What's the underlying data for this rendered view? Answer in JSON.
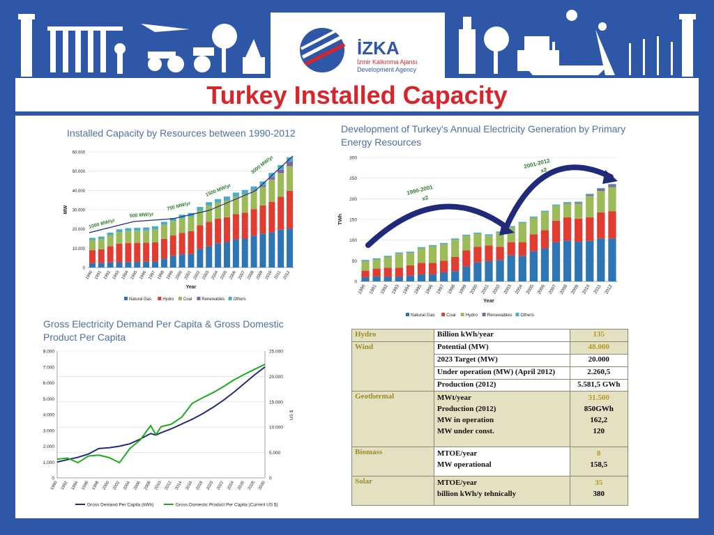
{
  "page": {
    "title": "Turkey Installed Capacity"
  },
  "logo": {
    "name": "İZKA",
    "line1": "İzmir Kalkınma Ajansı",
    "line2": "Development Agency"
  },
  "colors": {
    "frame": "#2f57a8",
    "title": "#d9242b",
    "chart_title": "#4c6fa5",
    "gas": "#2e75b6",
    "hydro": "#e03c31",
    "coal": "#9bbb59",
    "renew": "#8064a2",
    "others": "#4bacc6",
    "demand": "#1f2a7a",
    "gdp": "#1aab1a"
  },
  "chart_data": [
    {
      "type": "bar",
      "stacked": true,
      "title": "Installed Capacity by Resources between 1990-2012",
      "xlabel": "Year",
      "ylabel": "MW",
      "ylim": [
        0,
        60000
      ],
      "yticks": [
        "0",
        "10.000",
        "20.000",
        "30.000",
        "40.000",
        "50.000",
        "60.000"
      ],
      "categories": [
        "1990",
        "1991",
        "1992",
        "1993",
        "1994",
        "1995",
        "1996",
        "1997",
        "1998",
        "1999",
        "2000",
        "2001",
        "2002",
        "2003",
        "2004",
        "2005",
        "2006",
        "2007",
        "2008",
        "2009",
        "2010",
        "2011",
        "2012"
      ],
      "series": [
        {
          "name": "Natural Gas",
          "color": "#2e75b6",
          "values": [
            2200,
            2300,
            2600,
            2700,
            2800,
            2900,
            3000,
            3100,
            4600,
            6100,
            6800,
            7100,
            9700,
            11100,
            12600,
            13200,
            14600,
            15000,
            16500,
            17600,
            18300,
            19600,
            20200
          ]
        },
        {
          "name": "Hydro",
          "color": "#e03c31",
          "values": [
            6800,
            7100,
            8400,
            9700,
            9900,
            9900,
            9900,
            9900,
            10300,
            10500,
            11200,
            11700,
            12200,
            12600,
            12700,
            12900,
            13100,
            13400,
            13800,
            14600,
            15800,
            17100,
            19600
          ]
        },
        {
          "name": "Coal",
          "color": "#9bbb59",
          "values": [
            5200,
            5400,
            5800,
            6000,
            6200,
            6300,
            6300,
            6800,
            7300,
            7500,
            7500,
            7600,
            7800,
            8400,
            8400,
            8600,
            9000,
            9600,
            9600,
            9600,
            11500,
            12300,
            12800
          ]
        },
        {
          "name": "Renewables",
          "color": "#8064a2",
          "values": [
            0,
            0,
            0,
            0,
            0,
            0,
            0,
            0,
            0,
            0,
            0,
            0,
            0,
            0,
            0,
            20,
            60,
            150,
            360,
            800,
            1300,
            1700,
            2300
          ]
        },
        {
          "name": "Others",
          "color": "#4bacc6",
          "values": [
            1200,
            1250,
            1300,
            1400,
            1500,
            1500,
            1600,
            1600,
            1500,
            1600,
            1900,
            1900,
            1700,
            1800,
            1800,
            2100,
            2100,
            2100,
            1800,
            2100,
            2200,
            2400,
            2300
          ]
        }
      ],
      "annotations": [
        "1000 MW/yr",
        "500 MW/yr",
        "750 MW/yr",
        "1500 MW/yr",
        "3000 MW/yr"
      ],
      "legend": "bottom"
    },
    {
      "type": "bar",
      "stacked": true,
      "title": "Development of Turkey's Annual Electricity Generation by Primary Energy Resources",
      "xlabel": "Year",
      "ylabel": "TWh",
      "ylim": [
        0,
        300
      ],
      "yticks": [
        "0",
        "50",
        "100",
        "150",
        "200",
        "250",
        "300"
      ],
      "categories": [
        "1990",
        "1991",
        "1992",
        "1993",
        "1994",
        "1995",
        "1996",
        "1997",
        "1998",
        "1999",
        "2000",
        "2001",
        "2002",
        "2003",
        "2004",
        "2005",
        "2006",
        "2007",
        "2008",
        "2009",
        "2010",
        "2011",
        "2012"
      ],
      "series": [
        {
          "name": "Natural Gas",
          "color": "#2e75b6",
          "values": [
            10,
            12,
            11,
            11,
            14,
            17,
            17,
            22,
            25,
            36,
            46,
            49,
            52,
            63,
            62,
            73,
            80,
            95,
            99,
            96,
            98,
            104,
            104
          ]
        },
        {
          "name": "Coal",
          "color": "#e03c31",
          "values": [
            16,
            19,
            22,
            22,
            25,
            28,
            28,
            28,
            34,
            39,
            38,
            38,
            32,
            32,
            33,
            41,
            44,
            52,
            56,
            56,
            57,
            63,
            66
          ]
        },
        {
          "name": "Hydro",
          "color": "#9bbb59",
          "values": [
            23,
            22,
            26,
            34,
            30,
            35,
            40,
            40,
            42,
            35,
            31,
            24,
            34,
            36,
            46,
            40,
            44,
            36,
            33,
            36,
            52,
            52,
            58
          ]
        },
        {
          "name": "Renewables",
          "color": "#8064a2",
          "values": [
            0,
            0,
            0,
            0,
            0,
            0,
            0,
            0,
            0,
            0,
            0,
            0,
            0,
            0,
            0,
            0,
            0,
            0,
            1,
            2,
            3,
            5,
            6
          ]
        },
        {
          "name": "Others",
          "color": "#4bacc6",
          "values": [
            3,
            3,
            3,
            3,
            3,
            3,
            3,
            3,
            3,
            3,
            3,
            3,
            3,
            3,
            3,
            3,
            3,
            3,
            3,
            3,
            2,
            2,
            2
          ]
        }
      ],
      "annotations": [
        "1990-2001",
        "x2",
        "2001-2012",
        "x2"
      ],
      "legend": "bottom"
    },
    {
      "type": "line",
      "title": "Gross Electricity Demand Per Capita & Gross Domestic Product Per Capita",
      "ylim": [
        0,
        8000
      ],
      "y2lim": [
        0,
        25000
      ],
      "y2label": "US $",
      "yticks": [
        "0",
        "1.000",
        "2.000",
        "3.000",
        "4.000",
        "5.000",
        "6.000",
        "7.000",
        "8.000"
      ],
      "y2ticks": [
        "0",
        "5.000",
        "10.000",
        "15.000",
        "20.000",
        "25.000"
      ],
      "xticks": [
        "1990",
        "1992",
        "1994",
        "1996",
        "1998",
        "2000",
        "2002",
        "2004",
        "2006",
        "2008",
        "2010",
        "2012",
        "2014",
        "2016",
        "2018",
        "2020",
        "2022",
        "2024",
        "2026",
        "2028",
        "2030"
      ],
      "x": [
        1990,
        1992,
        1994,
        1996,
        1998,
        2000,
        2002,
        2004,
        2006,
        2008,
        2009,
        2010,
        2012,
        2014,
        2016,
        2018,
        2020,
        2022,
        2024,
        2026,
        2028,
        2030
      ],
      "series": [
        {
          "name": "Gross Demand Per Capita (kWh)",
          "axis": "left",
          "color": "#1f2a7a",
          "values": [
            1000,
            1150,
            1300,
            1500,
            1850,
            1900,
            2000,
            2150,
            2450,
            2800,
            2700,
            2850,
            3100,
            3400,
            3700,
            4050,
            4450,
            4900,
            5400,
            5950,
            6500,
            7000
          ]
        },
        {
          "name": "Gross Domestic Product Per Capita (Current US $)",
          "axis": "right",
          "color": "#1aab1a",
          "values": [
            3700,
            3900,
            3000,
            4300,
            4500,
            4000,
            3000,
            5800,
            7500,
            10300,
            8500,
            10100,
            10600,
            12000,
            14700,
            15800,
            16800,
            18000,
            19300,
            20400,
            21400,
            22400
          ]
        }
      ],
      "legend": "bottom"
    }
  ],
  "table": {
    "rows": [
      {
        "cat": "Hydro",
        "label": "Billion kWh/year",
        "value": "135",
        "style": "gold"
      },
      {
        "cat": "Wind",
        "label": "Potential (MW)",
        "value": "48.000",
        "style": "gold"
      },
      {
        "cat": "",
        "label": "2023 Target (MW)",
        "value": "20.000",
        "style": "dark"
      },
      {
        "cat": "",
        "label": "Under operation (MW) (April 2012)",
        "value": "2.260,5",
        "style": "dark"
      },
      {
        "cat": "",
        "label": "Production (2012)",
        "value": "5.581,5 GWh",
        "style": "dark"
      },
      {
        "cat": "Geothermal",
        "labels": [
          "MWt/year",
          "Production (2012)",
          "MW in operation",
          "MW under const."
        ],
        "values": [
          "31.500",
          "850GWh",
          "162,2",
          "120"
        ]
      },
      {
        "cat": "Biomass",
        "labels": [
          "MTOE/year",
          "MW operational"
        ],
        "values": [
          "8",
          "158,5"
        ]
      },
      {
        "cat": "Solar",
        "labels": [
          "MTOE/year",
          "billion kWh/y tehnically"
        ],
        "values": [
          "35",
          "380"
        ]
      }
    ]
  }
}
